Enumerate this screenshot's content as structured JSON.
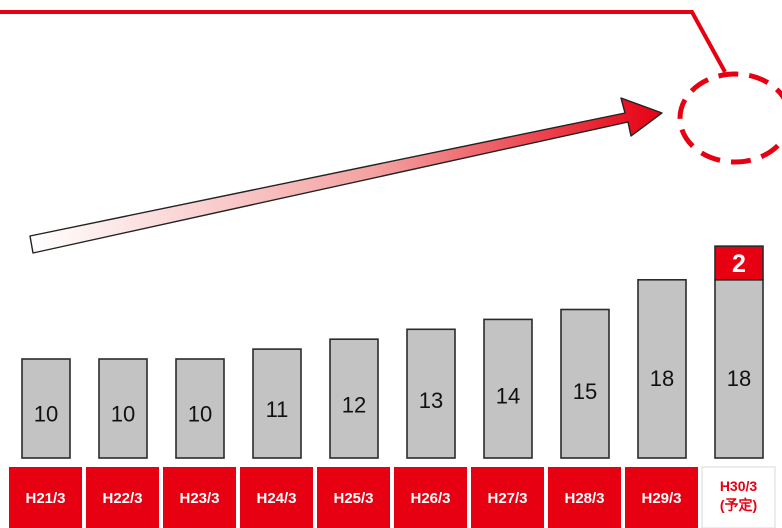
{
  "chart_data": {
    "type": "bar",
    "categories": [
      "H21/3",
      "H22/3",
      "H23/3",
      "H24/3",
      "H25/3",
      "H26/3",
      "H27/3",
      "H28/3",
      "H29/3",
      "H30/3"
    ],
    "category_notes": [
      "",
      "",
      "",
      "",
      "",
      "",
      "",
      "",
      "",
      "(予定)"
    ],
    "series": [
      {
        "values": [
          10,
          10,
          10,
          11,
          12,
          13,
          14,
          15,
          18,
          18
        ]
      },
      {
        "values": [
          0,
          0,
          0,
          0,
          0,
          0,
          0,
          0,
          0,
          2
        ]
      }
    ],
    "ylim": [
      0,
      21
    ],
    "grid": false,
    "annotations": [
      "upward trend arrow (white to red)",
      "dashed red circle highlighting +2 on H30/3",
      "red connector line from top edge to circle"
    ],
    "colors": {
      "bar": "#c3c3c3",
      "increase": "#e60012",
      "label_band": "#e60012",
      "arrow_start": "#ffffff",
      "arrow_end": "#e60012"
    }
  }
}
